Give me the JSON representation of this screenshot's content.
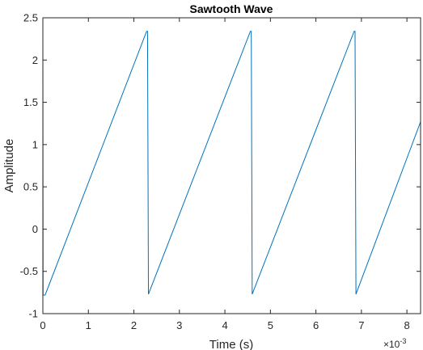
{
  "chart_data": {
    "type": "line",
    "title": "Sawtooth Wave",
    "xlabel": "Time (s)",
    "ylabel": "Amplitude",
    "x_multiplier_label": "×10",
    "x_multiplier_exponent": "-3",
    "xlim": [
      0,
      8.3
    ],
    "ylim": [
      -1,
      2.5
    ],
    "xticks": [
      0,
      1,
      2,
      3,
      4,
      5,
      6,
      7,
      8
    ],
    "xtick_labels": [
      "0",
      "1",
      "2",
      "3",
      "4",
      "5",
      "6",
      "7",
      "8"
    ],
    "yticks": [
      -1,
      -0.5,
      0,
      0.5,
      1,
      1.5,
      2,
      2.5
    ],
    "ytick_labels": [
      "-1",
      "-0.5",
      "0",
      "0.5",
      "1",
      "1.5",
      "2",
      "2.5"
    ],
    "grid": false,
    "line_color": "#0072BD",
    "series": [
      {
        "x": [
          0,
          0.005,
          0.05,
          2.28,
          2.3,
          2.32,
          4.56,
          4.58,
          4.6,
          6.84,
          6.86,
          6.88,
          8.3
        ],
        "y": [
          2.33,
          -0.78,
          -0.78,
          2.34,
          2.34,
          -0.77,
          2.34,
          2.34,
          -0.77,
          2.34,
          2.34,
          -0.77,
          1.27
        ]
      }
    ]
  }
}
